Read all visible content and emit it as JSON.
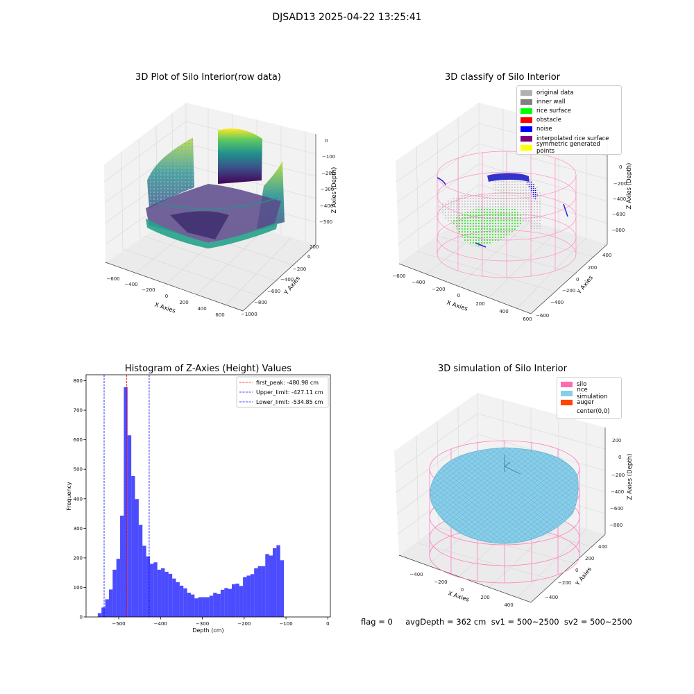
{
  "suptitle": "DJSAD13 2025-04-22 13:25:41",
  "panels": {
    "raw": {
      "title": "3D Plot of Silo Interior(row data)",
      "xlabel": "X Axies",
      "ylabel": "Y Axies",
      "zlabel": "Z Axies (Depth)",
      "xticks": [
        "−600",
        "−400",
        "−200",
        "0",
        "200",
        "400",
        "600"
      ],
      "yticks": [
        "200",
        "0",
        "−200",
        "−400",
        "−600",
        "−800",
        "−1000"
      ],
      "zticks": [
        "0",
        "−100",
        "−200",
        "−300",
        "−400",
        "−500"
      ]
    },
    "classify": {
      "title": "3D classify of Silo Interior",
      "xlabel": "X Axies",
      "ylabel": "Y Axies",
      "zlabel": "Z Axies (Depth)",
      "xticks": [
        "−600",
        "−400",
        "−200",
        "0",
        "200",
        "400",
        "600"
      ],
      "yticks": [
        "400",
        "200",
        "0",
        "−200",
        "−400",
        "−600"
      ],
      "zticks": [
        "0",
        "−200",
        "−400",
        "−600",
        "−800"
      ],
      "legend": [
        {
          "label": "original data",
          "color": "#b0b0b0"
        },
        {
          "label": "inner wall",
          "color": "#808080"
        },
        {
          "label": "rice surface",
          "color": "#00ff00"
        },
        {
          "label": "obstacle",
          "color": "#ff0000"
        },
        {
          "label": "noise",
          "color": "#0000ff"
        },
        {
          "label": "interpolated rice surface",
          "color": "#800080"
        },
        {
          "label": "symmetric generated points",
          "color": "#ffff00"
        }
      ]
    },
    "simulation": {
      "title": "3D simulation of Silo Interior",
      "xlabel": "X Axies",
      "ylabel": "Y Axies",
      "zlabel": "Z Axies (Depth)",
      "xticks": [
        "−400",
        "−200",
        "0",
        "200",
        "400"
      ],
      "yticks": [
        "400",
        "200",
        "0",
        "−200",
        "−400"
      ],
      "zticks": [
        "200",
        "0",
        "−200",
        "−400",
        "−600",
        "−800"
      ],
      "legend": [
        {
          "label": "silo",
          "color": "#ff69b4"
        },
        {
          "label": "rice simulation",
          "color": "#87ceeb"
        },
        {
          "label": "auger",
          "color": "#ff4500"
        },
        {
          "label": "center(0,0)",
          "color": "#ffffff"
        }
      ]
    }
  },
  "chart_data": {
    "type": "bar",
    "title": "Histogram of Z-Axies (Height) Values",
    "xlabel": "Depth (cm)",
    "ylabel": "Frequency",
    "xlim": [
      -578,
      6
    ],
    "ylim": [
      0,
      820
    ],
    "xticks": [
      -500,
      -400,
      -300,
      -200,
      -100,
      0
    ],
    "xtick_labels": [
      "−500",
      "−400",
      "−300",
      "−200",
      "−100",
      "0"
    ],
    "yticks": [
      0,
      100,
      200,
      300,
      400,
      500,
      600,
      700,
      800
    ],
    "bin_start": -550,
    "bin_width": 8.9,
    "values": [
      13,
      32,
      60,
      93,
      160,
      197,
      343,
      778,
      615,
      477,
      399,
      312,
      241,
      205,
      180,
      185,
      160,
      165,
      153,
      146,
      130,
      118,
      106,
      97,
      82,
      76,
      63,
      67,
      67,
      67,
      72,
      82,
      78,
      92,
      98,
      95,
      111,
      113,
      105,
      135,
      140,
      145,
      165,
      172,
      172,
      213,
      208,
      233,
      243,
      192
    ],
    "bar_color": "#0000ff",
    "vlines": [
      {
        "x": -480.98,
        "color": "#ff0000"
      },
      {
        "x": -427.11,
        "color": "#0000ff"
      },
      {
        "x": -534.85,
        "color": "#0000ff"
      }
    ],
    "legend": [
      "first_peak: -480.98 cm",
      "Upper_limit: -427.11 cm",
      "Lower_limit: -534.85 cm"
    ],
    "legend_position": "upper right"
  },
  "footer": "flag = 0     avgDepth = 362 cm  sv1 = 500~2500  sv2 = 500~2500"
}
